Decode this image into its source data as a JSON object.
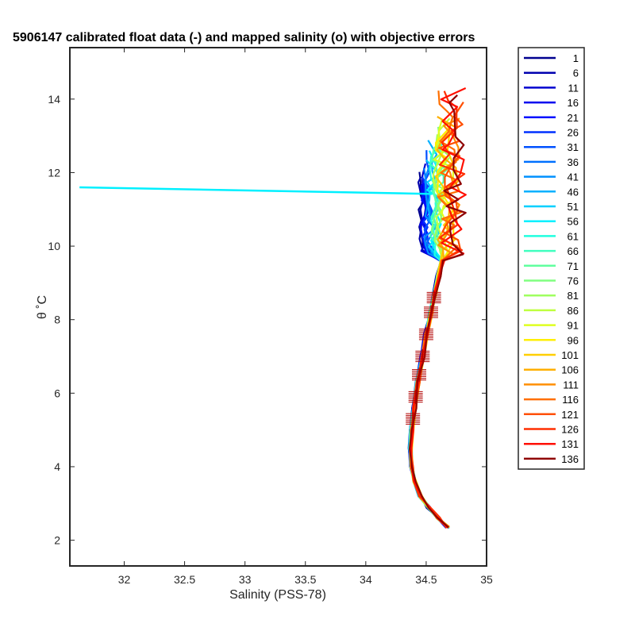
{
  "chart_data": {
    "type": "line",
    "title": "5906147 calibrated float data (-) and mapped salinity (o) with objective errors",
    "xlabel": "Salinity (PSS-78)",
    "ylabel": "θ ˚C",
    "xlim": [
      31.55,
      35.0
    ],
    "ylim": [
      1.3,
      15.4
    ],
    "xticks": [
      "32",
      "32.5",
      "33",
      "33.5",
      "34",
      "34.5",
      "35"
    ],
    "yticks": [
      "2",
      "4",
      "6",
      "8",
      "10",
      "12",
      "14"
    ],
    "grid": false,
    "legend_position": "outside-right",
    "colormap": "jet",
    "profiles": [
      "1",
      "6",
      "11",
      "16",
      "21",
      "26",
      "31",
      "36",
      "41",
      "46",
      "51",
      "56",
      "61",
      "66",
      "71",
      "76",
      "81",
      "86",
      "91",
      "96",
      "101",
      "106",
      "111",
      "116",
      "121",
      "126",
      "131",
      "136"
    ],
    "colors": [
      "#00008F",
      "#0000AF",
      "#0000CF",
      "#0000EF",
      "#0010FF",
      "#0030FF",
      "#0050FF",
      "#0070FF",
      "#0090FF",
      "#00B0FF",
      "#00D0FF",
      "#00F0FF",
      "#20FFDF",
      "#40FFBF",
      "#60FF9F",
      "#80FF80",
      "#9FFF60",
      "#BFFF40",
      "#DFFF20",
      "#FFEF00",
      "#FFCF00",
      "#FFAF00",
      "#FF8F00",
      "#FF6F00",
      "#FF4F00",
      "#FF2F00",
      "#FF0F00",
      "#8F0000"
    ],
    "profile_shape": {
      "salinity": [
        34.68,
        34.6,
        34.52,
        34.45,
        34.4,
        34.38,
        34.37,
        34.38,
        34.4,
        34.43,
        34.47,
        34.5,
        34.54,
        34.57,
        34.6,
        34.63
      ],
      "theta": [
        2.35,
        2.6,
        2.9,
        3.2,
        3.6,
        4.0,
        4.5,
        5.0,
        5.6,
        6.3,
        7.0,
        7.6,
        8.2,
        8.7,
        9.2,
        9.6
      ]
    },
    "surface_range": {
      "salinity": [
        34.45,
        34.9
      ],
      "theta": [
        9.3,
        14.4
      ]
    },
    "outlier_segment": {
      "salinity": [
        31.63,
        34.55
      ],
      "theta": [
        11.6,
        11.42
      ]
    },
    "error_marks_theta": [
      5.3,
      5.9,
      6.5,
      7.0,
      7.6,
      8.2,
      8.6
    ]
  }
}
